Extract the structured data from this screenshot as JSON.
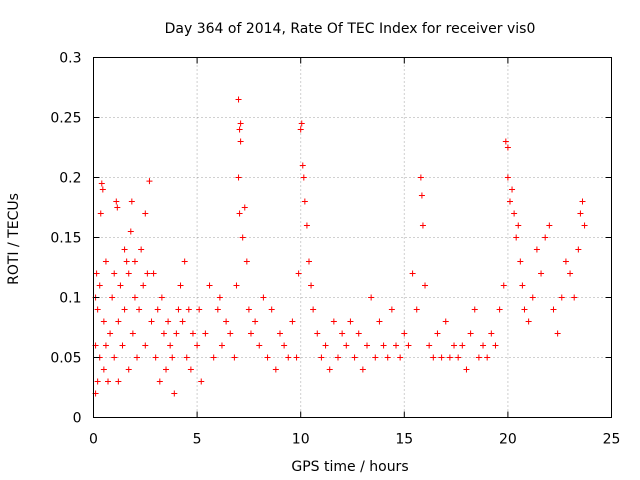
{
  "chart_data": {
    "type": "scatter",
    "title": "Day 364 of 2014, Rate Of TEC Index for receiver vis0",
    "xlabel": "GPS time / hours",
    "ylabel": "ROTI / TECUs",
    "xlim": [
      0,
      25
    ],
    "ylim": [
      0,
      0.3
    ],
    "xticks": [
      0,
      5,
      10,
      15,
      20,
      25
    ],
    "xtick_labels": [
      "0",
      "5",
      "10",
      "15",
      "20",
      "25"
    ],
    "yticks": [
      0,
      0.05,
      0.1,
      0.15,
      0.2,
      0.25,
      0.3
    ],
    "ytick_labels": [
      "0",
      "0.05",
      "0.1",
      "0.15",
      "0.2",
      "0.25",
      "0.3"
    ],
    "grid": true,
    "marker": "+",
    "color": "#ff0000",
    "series": [
      {
        "name": "ROTI",
        "points": [
          [
            0.1,
            0.02
          ],
          [
            0.1,
            0.06
          ],
          [
            0.1,
            0.1
          ],
          [
            0.15,
            0.12
          ],
          [
            0.2,
            0.03
          ],
          [
            0.2,
            0.09
          ],
          [
            0.3,
            0.05
          ],
          [
            0.3,
            0.11
          ],
          [
            0.35,
            0.17
          ],
          [
            0.4,
            0.195
          ],
          [
            0.45,
            0.19
          ],
          [
            0.5,
            0.04
          ],
          [
            0.5,
            0.08
          ],
          [
            0.6,
            0.13
          ],
          [
            0.6,
            0.06
          ],
          [
            0.7,
            0.03
          ],
          [
            0.8,
            0.07
          ],
          [
            0.9,
            0.1
          ],
          [
            1.0,
            0.05
          ],
          [
            1.0,
            0.12
          ],
          [
            1.1,
            0.18
          ],
          [
            1.15,
            0.175
          ],
          [
            1.2,
            0.08
          ],
          [
            1.2,
            0.03
          ],
          [
            1.3,
            0.11
          ],
          [
            1.4,
            0.06
          ],
          [
            1.5,
            0.14
          ],
          [
            1.5,
            0.09
          ],
          [
            1.6,
            0.13
          ],
          [
            1.7,
            0.04
          ],
          [
            1.7,
            0.12
          ],
          [
            1.8,
            0.155
          ],
          [
            1.85,
            0.18
          ],
          [
            1.9,
            0.07
          ],
          [
            2.0,
            0.1
          ],
          [
            2.0,
            0.13
          ],
          [
            2.1,
            0.05
          ],
          [
            2.2,
            0.09
          ],
          [
            2.3,
            0.14
          ],
          [
            2.4,
            0.11
          ],
          [
            2.5,
            0.17
          ],
          [
            2.5,
            0.06
          ],
          [
            2.6,
            0.12
          ],
          [
            2.7,
            0.197
          ],
          [
            2.8,
            0.08
          ],
          [
            2.9,
            0.12
          ],
          [
            3.0,
            0.05
          ],
          [
            3.1,
            0.09
          ],
          [
            3.2,
            0.03
          ],
          [
            3.3,
            0.1
          ],
          [
            3.4,
            0.07
          ],
          [
            3.5,
            0.04
          ],
          [
            3.6,
            0.08
          ],
          [
            3.7,
            0.06
          ],
          [
            3.8,
            0.05
          ],
          [
            3.9,
            0.02
          ],
          [
            4.0,
            0.07
          ],
          [
            4.1,
            0.09
          ],
          [
            4.2,
            0.11
          ],
          [
            4.3,
            0.08
          ],
          [
            4.4,
            0.13
          ],
          [
            4.5,
            0.05
          ],
          [
            4.6,
            0.09
          ],
          [
            4.7,
            0.04
          ],
          [
            4.8,
            0.07
          ],
          [
            5.0,
            0.06
          ],
          [
            5.1,
            0.09
          ],
          [
            5.2,
            0.03
          ],
          [
            5.4,
            0.07
          ],
          [
            5.6,
            0.11
          ],
          [
            5.8,
            0.05
          ],
          [
            6.0,
            0.09
          ],
          [
            6.1,
            0.1
          ],
          [
            6.2,
            0.06
          ],
          [
            6.4,
            0.08
          ],
          [
            6.6,
            0.07
          ],
          [
            6.8,
            0.05
          ],
          [
            6.9,
            0.11
          ],
          [
            7.0,
            0.265
          ],
          [
            7.05,
            0.24
          ],
          [
            7.1,
            0.245
          ],
          [
            7.0,
            0.2
          ],
          [
            7.05,
            0.17
          ],
          [
            7.1,
            0.23
          ],
          [
            7.2,
            0.15
          ],
          [
            7.3,
            0.175
          ],
          [
            7.4,
            0.13
          ],
          [
            7.5,
            0.09
          ],
          [
            7.6,
            0.07
          ],
          [
            7.8,
            0.08
          ],
          [
            8.0,
            0.06
          ],
          [
            8.2,
            0.1
          ],
          [
            8.4,
            0.05
          ],
          [
            8.6,
            0.09
          ],
          [
            8.8,
            0.04
          ],
          [
            9.0,
            0.07
          ],
          [
            9.2,
            0.06
          ],
          [
            9.4,
            0.05
          ],
          [
            9.6,
            0.08
          ],
          [
            9.8,
            0.05
          ],
          [
            9.9,
            0.12
          ],
          [
            10.0,
            0.24
          ],
          [
            10.05,
            0.245
          ],
          [
            10.1,
            0.21
          ],
          [
            10.15,
            0.2
          ],
          [
            10.2,
            0.18
          ],
          [
            10.3,
            0.16
          ],
          [
            10.4,
            0.13
          ],
          [
            10.5,
            0.11
          ],
          [
            10.6,
            0.09
          ],
          [
            10.8,
            0.07
          ],
          [
            11.0,
            0.05
          ],
          [
            11.2,
            0.06
          ],
          [
            11.4,
            0.04
          ],
          [
            11.6,
            0.08
          ],
          [
            11.8,
            0.05
          ],
          [
            12.0,
            0.07
          ],
          [
            12.2,
            0.06
          ],
          [
            12.4,
            0.08
          ],
          [
            12.6,
            0.05
          ],
          [
            12.8,
            0.07
          ],
          [
            13.0,
            0.04
          ],
          [
            13.2,
            0.06
          ],
          [
            13.4,
            0.1
          ],
          [
            13.6,
            0.05
          ],
          [
            13.8,
            0.08
          ],
          [
            14.0,
            0.06
          ],
          [
            14.2,
            0.05
          ],
          [
            14.4,
            0.09
          ],
          [
            14.6,
            0.06
          ],
          [
            14.8,
            0.05
          ],
          [
            15.0,
            0.07
          ],
          [
            15.2,
            0.06
          ],
          [
            15.4,
            0.12
          ],
          [
            15.6,
            0.09
          ],
          [
            15.8,
            0.2
          ],
          [
            15.85,
            0.185
          ],
          [
            15.9,
            0.16
          ],
          [
            16.0,
            0.11
          ],
          [
            16.2,
            0.06
          ],
          [
            16.4,
            0.05
          ],
          [
            16.6,
            0.07
          ],
          [
            16.8,
            0.05
          ],
          [
            17.0,
            0.08
          ],
          [
            17.2,
            0.05
          ],
          [
            17.4,
            0.06
          ],
          [
            17.6,
            0.05
          ],
          [
            17.8,
            0.06
          ],
          [
            18.0,
            0.04
          ],
          [
            18.2,
            0.07
          ],
          [
            18.4,
            0.09
          ],
          [
            18.6,
            0.05
          ],
          [
            18.8,
            0.06
          ],
          [
            19.0,
            0.05
          ],
          [
            19.2,
            0.07
          ],
          [
            19.4,
            0.06
          ],
          [
            19.6,
            0.09
          ],
          [
            19.8,
            0.11
          ],
          [
            19.9,
            0.23
          ],
          [
            20.0,
            0.225
          ],
          [
            20.0,
            0.2
          ],
          [
            20.1,
            0.18
          ],
          [
            20.2,
            0.19
          ],
          [
            20.3,
            0.17
          ],
          [
            20.4,
            0.15
          ],
          [
            20.5,
            0.16
          ],
          [
            20.6,
            0.13
          ],
          [
            20.7,
            0.11
          ],
          [
            20.8,
            0.09
          ],
          [
            21.0,
            0.08
          ],
          [
            21.2,
            0.1
          ],
          [
            21.4,
            0.14
          ],
          [
            21.6,
            0.12
          ],
          [
            21.8,
            0.15
          ],
          [
            22.0,
            0.16
          ],
          [
            22.2,
            0.09
          ],
          [
            22.4,
            0.07
          ],
          [
            22.6,
            0.1
          ],
          [
            22.8,
            0.13
          ],
          [
            23.0,
            0.12
          ],
          [
            23.2,
            0.1
          ],
          [
            23.4,
            0.14
          ],
          [
            23.5,
            0.17
          ],
          [
            23.6,
            0.18
          ],
          [
            23.7,
            0.16
          ]
        ]
      }
    ]
  }
}
